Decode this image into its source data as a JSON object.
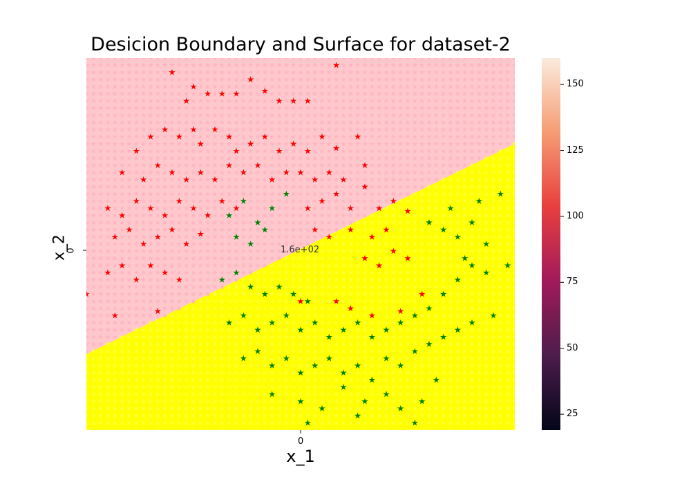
{
  "chart_data": {
    "type": "scatter",
    "title": "Desicion Boundary and Surface for dataset-2",
    "xlabel": "x_1",
    "ylabel": "x_2",
    "x_ticks": [
      "0"
    ],
    "y_ticks": [
      "0"
    ],
    "center_annotation": "1.6e+02",
    "colorbar": {
      "ticks": [
        25,
        50,
        75,
        100,
        125,
        150
      ],
      "range": [
        19,
        160
      ]
    },
    "xlim": [
      -1.5,
      1.5
    ],
    "ylim": [
      -1.25,
      1.35
    ],
    "decision_boundary": {
      "x0": -1.5,
      "y0": -0.72,
      "x1": 1.5,
      "y1": 0.75
    },
    "region_colors": {
      "class_0": "#ffc8cc",
      "class_1": "#ffff00"
    },
    "marker_colors": {
      "class_0": "#ff0000",
      "class_1": "#008000"
    },
    "series": [
      {
        "class": 0,
        "points": [
          [
            -0.9,
            1.25
          ],
          [
            -0.8,
            1.05
          ],
          [
            -0.75,
            1.15
          ],
          [
            -0.65,
            1.1
          ],
          [
            -0.55,
            1.1
          ],
          [
            -0.45,
            1.1
          ],
          [
            -0.35,
            1.2
          ],
          [
            -0.25,
            1.12
          ],
          [
            -0.15,
            1.05
          ],
          [
            -0.05,
            1.05
          ],
          [
            0.05,
            1.05
          ],
          [
            0.25,
            1.3
          ],
          [
            -1.15,
            0.7
          ],
          [
            -1.05,
            0.8
          ],
          [
            -0.95,
            0.85
          ],
          [
            -0.85,
            0.8
          ],
          [
            -0.75,
            0.85
          ],
          [
            -0.7,
            0.75
          ],
          [
            -0.6,
            0.85
          ],
          [
            -0.5,
            0.8
          ],
          [
            -0.45,
            0.7
          ],
          [
            -0.35,
            0.75
          ],
          [
            -0.25,
            0.8
          ],
          [
            -0.15,
            0.7
          ],
          [
            -0.05,
            0.75
          ],
          [
            0.05,
            0.7
          ],
          [
            0.15,
            0.8
          ],
          [
            0.25,
            0.72
          ],
          [
            0.4,
            0.8
          ],
          [
            -1.25,
            0.55
          ],
          [
            -1.1,
            0.5
          ],
          [
            -1.0,
            0.6
          ],
          [
            -0.9,
            0.55
          ],
          [
            -0.8,
            0.5
          ],
          [
            -0.7,
            0.55
          ],
          [
            -0.6,
            0.5
          ],
          [
            -0.5,
            0.6
          ],
          [
            -0.4,
            0.55
          ],
          [
            -0.3,
            0.6
          ],
          [
            -0.2,
            0.5
          ],
          [
            -0.1,
            0.55
          ],
          [
            0.0,
            0.55
          ],
          [
            0.1,
            0.5
          ],
          [
            0.2,
            0.55
          ],
          [
            0.3,
            0.5
          ],
          [
            0.45,
            0.6
          ],
          [
            -1.35,
            0.3
          ],
          [
            -1.25,
            0.25
          ],
          [
            -1.15,
            0.35
          ],
          [
            -1.05,
            0.3
          ],
          [
            -0.95,
            0.25
          ],
          [
            -0.85,
            0.35
          ],
          [
            -0.75,
            0.3
          ],
          [
            -0.65,
            0.25
          ],
          [
            -0.55,
            0.35
          ],
          [
            -0.45,
            0.3
          ],
          [
            0.05,
            0.3
          ],
          [
            0.15,
            0.35
          ],
          [
            0.25,
            0.4
          ],
          [
            0.35,
            0.3
          ],
          [
            0.45,
            0.45
          ],
          [
            0.55,
            0.3
          ],
          [
            0.65,
            0.35
          ],
          [
            0.75,
            0.28
          ],
          [
            -1.3,
            0.1
          ],
          [
            -1.2,
            0.15
          ],
          [
            -1.1,
            0.05
          ],
          [
            -1.0,
            0.1
          ],
          [
            -0.9,
            0.15
          ],
          [
            -0.8,
            0.05
          ],
          [
            -0.7,
            0.12
          ],
          [
            0.1,
            0.15
          ],
          [
            0.2,
            0.1
          ],
          [
            0.35,
            0.15
          ],
          [
            0.5,
            0.1
          ],
          [
            0.6,
            0.15
          ],
          [
            -1.35,
            -0.15
          ],
          [
            -1.25,
            -0.1
          ],
          [
            -1.15,
            -0.2
          ],
          [
            -1.05,
            -0.1
          ],
          [
            -0.95,
            -0.15
          ],
          [
            -0.85,
            -0.2
          ],
          [
            0.45,
            -0.05
          ],
          [
            0.55,
            -0.1
          ],
          [
            0.65,
            0.0
          ],
          [
            0.75,
            -0.05
          ],
          [
            -1.5,
            -0.3
          ],
          [
            -1.3,
            -0.45
          ],
          [
            -1.0,
            -0.42
          ],
          [
            0.0,
            -0.35
          ],
          [
            0.25,
            -0.35
          ],
          [
            0.35,
            -0.4
          ],
          [
            0.5,
            -0.45
          ],
          [
            0.7,
            -0.42
          ],
          [
            0.85,
            -0.3
          ]
        ]
      },
      {
        "class": 1,
        "points": [
          [
            -0.5,
            0.25
          ],
          [
            -0.4,
            0.35
          ],
          [
            -0.3,
            0.2
          ],
          [
            -0.2,
            0.3
          ],
          [
            -0.1,
            0.4
          ],
          [
            -0.45,
            0.1
          ],
          [
            -0.35,
            0.05
          ],
          [
            -0.25,
            0.15
          ],
          [
            -0.55,
            -0.2
          ],
          [
            -0.45,
            -0.15
          ],
          [
            -0.35,
            -0.25
          ],
          [
            -0.25,
            -0.3
          ],
          [
            -0.15,
            -0.25
          ],
          [
            -0.05,
            -0.3
          ],
          [
            0.05,
            -0.35
          ],
          [
            -0.5,
            -0.5
          ],
          [
            -0.4,
            -0.45
          ],
          [
            -0.3,
            -0.55
          ],
          [
            -0.2,
            -0.5
          ],
          [
            -0.1,
            -0.45
          ],
          [
            0.0,
            -0.55
          ],
          [
            0.1,
            -0.5
          ],
          [
            0.2,
            -0.6
          ],
          [
            0.3,
            -0.55
          ],
          [
            0.4,
            -0.5
          ],
          [
            0.5,
            -0.6
          ],
          [
            0.6,
            -0.55
          ],
          [
            0.7,
            -0.5
          ],
          [
            0.8,
            -0.45
          ],
          [
            0.9,
            -0.4
          ],
          [
            1.0,
            -0.3
          ],
          [
            1.1,
            -0.2
          ],
          [
            1.2,
            -0.1
          ],
          [
            1.3,
            -0.15
          ],
          [
            1.45,
            -0.1
          ],
          [
            -0.4,
            -0.75
          ],
          [
            -0.3,
            -0.7
          ],
          [
            -0.2,
            -0.8
          ],
          [
            -0.1,
            -0.75
          ],
          [
            0.0,
            -0.85
          ],
          [
            0.1,
            -0.8
          ],
          [
            0.2,
            -0.75
          ],
          [
            0.3,
            -0.85
          ],
          [
            0.4,
            -0.8
          ],
          [
            0.5,
            -0.9
          ],
          [
            0.6,
            -0.75
          ],
          [
            0.7,
            -0.8
          ],
          [
            0.8,
            -0.7
          ],
          [
            0.9,
            -0.65
          ],
          [
            1.0,
            -0.6
          ],
          [
            1.1,
            -0.55
          ],
          [
            1.2,
            -0.5
          ],
          [
            1.35,
            -0.45
          ],
          [
            -0.2,
            -1.0
          ],
          [
            0.0,
            -1.05
          ],
          [
            0.15,
            -1.1
          ],
          [
            0.3,
            -0.95
          ],
          [
            0.45,
            -1.05
          ],
          [
            0.6,
            -1.0
          ],
          [
            0.7,
            -1.1
          ],
          [
            0.85,
            -1.05
          ],
          [
            0.95,
            -0.9
          ],
          [
            0.9,
            0.2
          ],
          [
            1.0,
            0.15
          ],
          [
            1.1,
            0.1
          ],
          [
            1.2,
            0.2
          ],
          [
            1.3,
            0.05
          ],
          [
            1.15,
            -0.05
          ],
          [
            1.05,
            0.3
          ],
          [
            1.25,
            0.35
          ],
          [
            1.4,
            0.4
          ],
          [
            0.05,
            -1.2
          ],
          [
            0.4,
            -1.15
          ],
          [
            0.8,
            -1.2
          ]
        ]
      }
    ]
  }
}
